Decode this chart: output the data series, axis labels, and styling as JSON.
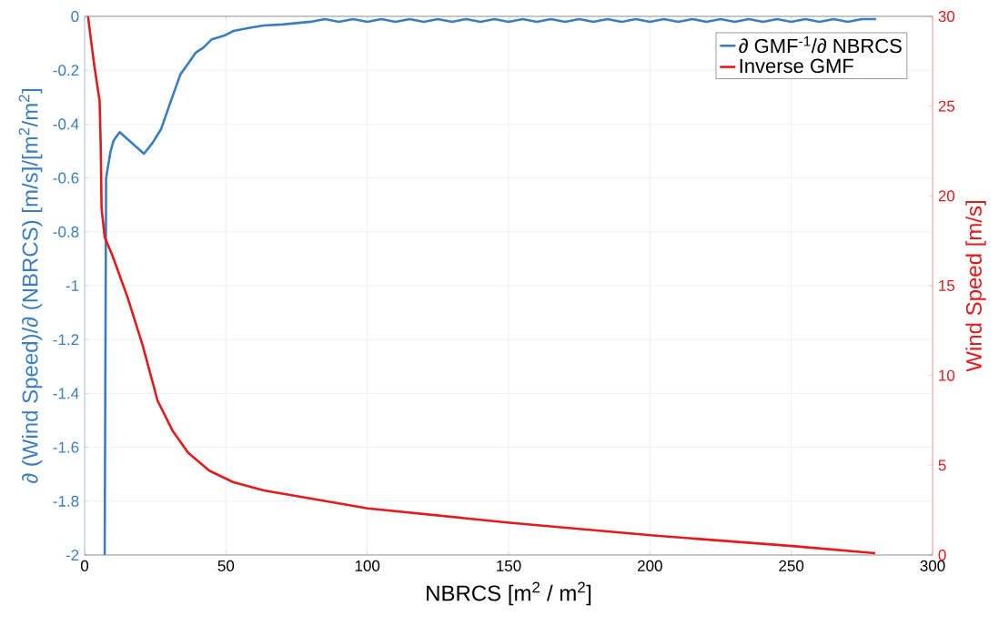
{
  "chart_data": {
    "type": "line",
    "xlabel": "NBRCS [m$^{2}$ / m$^{2}$]",
    "ylabel": "∂ (Wind Speed)/∂ (NBRCS) [m/s]/[m$^{2}$/m$^{2}$]",
    "y2label": "Wind Speed [m/s]",
    "xlim": [
      0,
      300
    ],
    "xticks": [
      0,
      50,
      100,
      150,
      200,
      250,
      300
    ],
    "ylim": [
      -2,
      0
    ],
    "yticks": [
      -2,
      -1.8,
      -1.6,
      -1.4,
      -1.2,
      -1,
      -0.8,
      -0.6,
      -0.4,
      -0.2,
      0
    ],
    "y2lim": [
      0,
      30
    ],
    "y2ticks": [
      0,
      5,
      10,
      15,
      20,
      25,
      30
    ],
    "grid": true,
    "legend": "top right",
    "series": [
      {
        "name": "∂ GMF$^{-1}$/∂ NBRCS",
        "color": "#3a7ebf",
        "axis": "y",
        "x": [
          7.1,
          7.6,
          9.2,
          10.3,
          12.4,
          21,
          24,
          27,
          30,
          33.9,
          36.6,
          39.3,
          41.9,
          45,
          49.5,
          52.7,
          58,
          63.4,
          70,
          75,
          80,
          85,
          90,
          95,
          100,
          105,
          110,
          115,
          120,
          125,
          130,
          135,
          140,
          145,
          150,
          155,
          160,
          165,
          170,
          175,
          180,
          185,
          190,
          195,
          200,
          205,
          210,
          215,
          220,
          225,
          230,
          235,
          240,
          245,
          250,
          255,
          260,
          265,
          270,
          275,
          280
        ],
        "values": [
          -2,
          -0.6,
          -0.5,
          -0.46,
          -0.43,
          -0.51,
          -0.47,
          -0.42,
          -0.33,
          -0.215,
          -0.176,
          -0.135,
          -0.117,
          -0.085,
          -0.071,
          -0.054,
          -0.043,
          -0.034,
          -0.03,
          -0.025,
          -0.02,
          -0.01,
          -0.02,
          -0.01,
          -0.02,
          -0.01,
          -0.02,
          -0.01,
          -0.02,
          -0.01,
          -0.02,
          -0.01,
          -0.02,
          -0.01,
          -0.02,
          -0.01,
          -0.02,
          -0.01,
          -0.02,
          -0.01,
          -0.02,
          -0.01,
          -0.02,
          -0.01,
          -0.02,
          -0.01,
          -0.02,
          -0.01,
          -0.02,
          -0.01,
          -0.02,
          -0.01,
          -0.02,
          -0.01,
          -0.02,
          -0.01,
          -0.02,
          -0.01,
          -0.02,
          -0.01,
          -0.01
        ]
      },
      {
        "name": "Inverse GMF",
        "color": "#e41a1c",
        "axis": "y2",
        "x": [
          1.2,
          3.3,
          5.3,
          5.7,
          6.0,
          7.1,
          9.8,
          15.1,
          20.5,
          25.8,
          31.2,
          36.6,
          44.1,
          52.7,
          63.4,
          100.2,
          150.3,
          200.3,
          250.4,
          279.7
        ],
        "values": [
          30,
          27.4,
          25.3,
          22.8,
          19.3,
          17.7,
          16.7,
          14.4,
          11.7,
          8.6,
          6.9,
          5.7,
          4.7,
          4.05,
          3.6,
          2.6,
          1.8,
          1.1,
          0.5,
          0.1
        ]
      }
    ]
  }
}
